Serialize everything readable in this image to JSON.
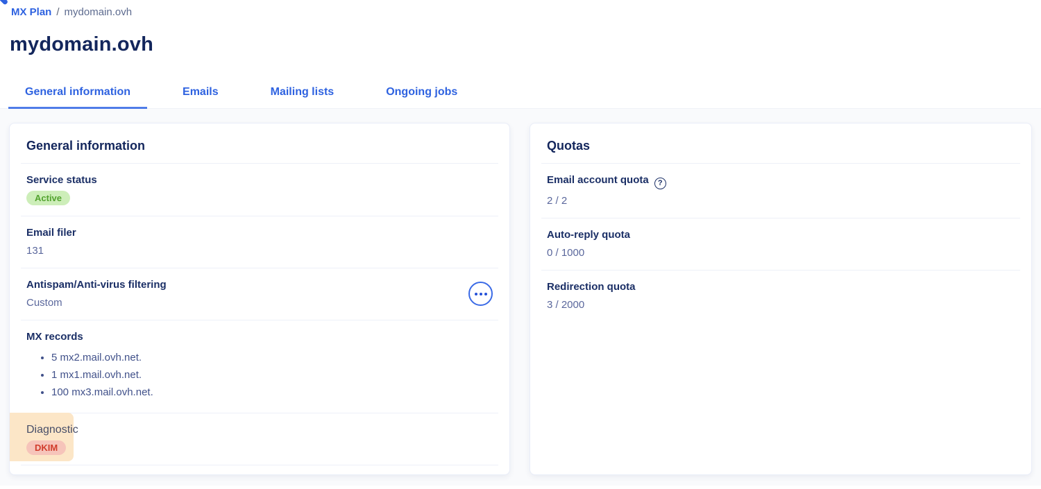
{
  "breadcrumb": {
    "root": "MX Plan",
    "separator": "/",
    "current": "mydomain.ovh"
  },
  "page_title": "mydomain.ovh",
  "tabs": [
    {
      "label": "General information",
      "active": true
    },
    {
      "label": "Emails",
      "active": false
    },
    {
      "label": "Mailing lists",
      "active": false
    },
    {
      "label": "Ongoing jobs",
      "active": false
    }
  ],
  "general_card": {
    "title": "General information",
    "service_status": {
      "label": "Service status",
      "badge": "Active",
      "badge_color": "#cdeeb9"
    },
    "email_filer": {
      "label": "Email filer",
      "value": "131"
    },
    "antispam": {
      "label": "Antispam/Anti-virus filtering",
      "value": "Custom",
      "menu_icon": "ellipsis-icon"
    },
    "mx_records": {
      "label": "MX records",
      "items": [
        "5 mx2.mail.ovh.net.",
        "1 mx1.mail.ovh.net.",
        "100 mx3.mail.ovh.net."
      ]
    },
    "diagnostic": {
      "label": "Diagnostic",
      "badge": "DKIM",
      "badge_color": "#f6c4ba",
      "highlight_color": "#fce6c7"
    }
  },
  "quotas_card": {
    "title": "Quotas",
    "items": [
      {
        "label": "Email account quota",
        "value": "2 / 2",
        "help_icon": "?"
      },
      {
        "label": "Auto-reply quota",
        "value": "0 / 1000"
      },
      {
        "label": "Redirection quota",
        "value": "3 / 2000"
      }
    ]
  },
  "colors": {
    "link_blue": "#2e62e0",
    "heading_navy": "#13265c",
    "value_slate": "#5a679c",
    "active_badge_text": "#53a32f",
    "dkim_badge_text": "#d13c2c"
  }
}
